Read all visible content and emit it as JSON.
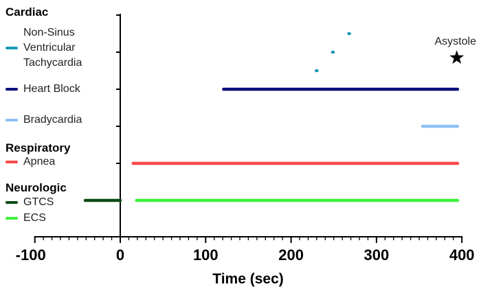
{
  "legend": {
    "groups": [
      {
        "title": "Cardiac",
        "items": [
          {
            "label": "Non-Sinus Ventricular Tachycardia",
            "lines": [
              "Non-Sinus",
              "Ventricular",
              "Tachycardia"
            ],
            "color": "#1a9bb5"
          },
          {
            "label": "Heart Block",
            "color": "#0b0b7a"
          },
          {
            "label": "Bradycardia",
            "color": "#8fc0f5"
          }
        ]
      },
      {
        "title": "Respiratory",
        "items": [
          {
            "label": "Apnea",
            "color": "#ff4747"
          }
        ]
      },
      {
        "title": "Neurologic",
        "items": [
          {
            "label": "GTCS",
            "color": "#0b4a12"
          },
          {
            "label": "ECS",
            "color": "#3ef03e"
          }
        ]
      }
    ]
  },
  "chart_data": {
    "type": "timeline",
    "xlabel": "Time (sec)",
    "ylabel": "",
    "xlim": [
      -100,
      400
    ],
    "xticks": [
      -100,
      0,
      100,
      200,
      300,
      400
    ],
    "xtick_labels": [
      "-100",
      "0",
      "100",
      "200",
      "300",
      "400"
    ],
    "x_minor_tick_step": 10,
    "ylim": [
      0,
      6
    ],
    "yticks": [
      1,
      2,
      3,
      4,
      5,
      6
    ],
    "grid": false,
    "legend_position": "left",
    "series": [
      {
        "name": "Non-Sinus Ventricular Tachycardia",
        "type": "points",
        "color": "#1a9bb5",
        "points": [
          [
            230,
            4.5
          ],
          [
            249,
            5.0
          ],
          [
            268,
            5.5
          ]
        ]
      },
      {
        "name": "Heart Block",
        "type": "segment",
        "color": "#0b0b7a",
        "y": 4,
        "start": 121,
        "end": 395
      },
      {
        "name": "Bradycardia",
        "type": "segment",
        "color": "#8fc0f5",
        "y": 3,
        "start": 354,
        "end": 395
      },
      {
        "name": "Apnea",
        "type": "segment",
        "color": "#ff4747",
        "y": 2,
        "start": 15,
        "end": 395
      },
      {
        "name": "GTCS",
        "type": "segment",
        "color": "#0b4a12",
        "y": 1,
        "start": -41,
        "end": 0
      },
      {
        "name": "ECS",
        "type": "segment",
        "color": "#3ef03e",
        "y": 1,
        "start": 19,
        "end": 395
      }
    ],
    "annotations": [
      {
        "text": "Asystole",
        "x": 394,
        "y": 4.85,
        "marker": "star"
      }
    ]
  }
}
